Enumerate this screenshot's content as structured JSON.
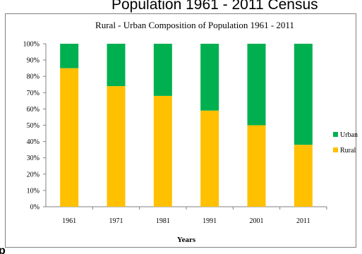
{
  "header_text": "Population 1961 - 2011 Census",
  "stray_text": "p",
  "chart_data": {
    "type": "bar",
    "stacked": true,
    "title": "Rural - Urban Composition of Population 1961 - 2011",
    "xlabel": "Years",
    "ylabel": "",
    "categories": [
      "1961",
      "1971",
      "1981",
      "1991",
      "2001",
      "2011"
    ],
    "series": [
      {
        "name": "Rural",
        "values": [
          85,
          74,
          68,
          59,
          50,
          38
        ],
        "color": "#FFC000"
      },
      {
        "name": "Urban",
        "values": [
          15,
          26,
          32,
          41,
          50,
          62
        ],
        "color": "#00B050"
      }
    ],
    "ylim": [
      0,
      100
    ],
    "yticks": [
      "0%",
      "10%",
      "20%",
      "30%",
      "40%",
      "50%",
      "60%",
      "70%",
      "80%",
      "90%",
      "100%"
    ],
    "legend": {
      "placement": "right",
      "entries": [
        "Urban",
        "Rural"
      ]
    },
    "grid": false
  }
}
